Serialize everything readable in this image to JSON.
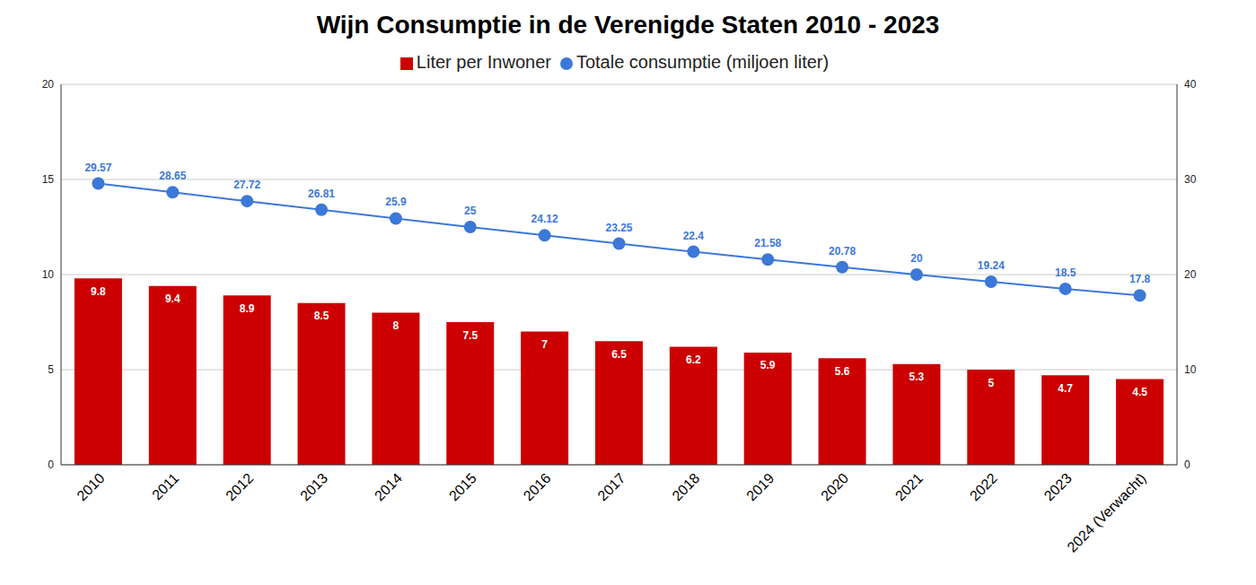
{
  "chart_data": {
    "type": "bar",
    "title": "Wijn Consumptie in de Verenigde Staten 2010 - 2023",
    "categories": [
      "2010",
      "2011",
      "2012",
      "2013",
      "2014",
      "2015",
      "2016",
      "2017",
      "2018",
      "2019",
      "2020",
      "2021",
      "2022",
      "2023",
      "2024 (Verwacht)"
    ],
    "series": [
      {
        "name": "Liter per Inwoner",
        "color": "#cc0000",
        "type": "bar",
        "values": [
          9.8,
          9.4,
          8.9,
          8.5,
          8,
          7.5,
          7,
          6.5,
          6.2,
          5.9,
          5.6,
          5.3,
          5,
          4.7,
          4.5
        ]
      },
      {
        "name": "Totale consumptie (miljoen liter)",
        "color": "#3c78d8",
        "type": "line",
        "axis": "y2",
        "marker": "circle",
        "values": [
          29.57,
          28.65,
          27.72,
          26.81,
          25.9,
          25,
          24.12,
          23.25,
          22.4,
          21.58,
          20.78,
          20,
          19.24,
          18.5,
          17.8
        ]
      }
    ],
    "ylim": [
      0,
      20
    ],
    "yticks": [
      0,
      5,
      10,
      15,
      20
    ],
    "y2lim": [
      0,
      40
    ],
    "y2ticks": [
      0,
      10,
      20,
      30,
      40
    ],
    "grid": true,
    "legend": "top",
    "data_labels": true
  }
}
